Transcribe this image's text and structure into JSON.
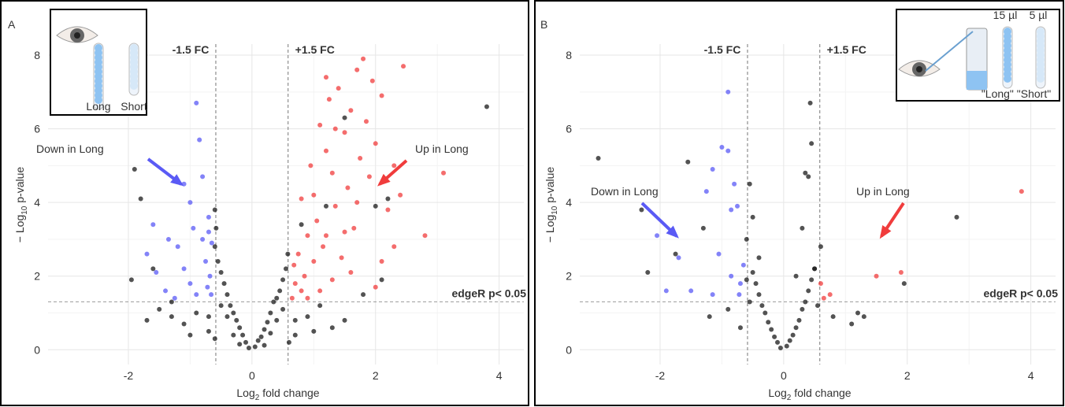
{
  "chart_data": [
    {
      "type": "scatter",
      "panel_label": "A",
      "xlabel": {
        "pre": "Log",
        "sub": "2",
        "post": " fold change"
      },
      "ylabel": {
        "pre": "− Log",
        "sub": "10",
        "post": " p-value"
      },
      "xlim": [
        -3.3,
        4.4
      ],
      "ylim": [
        -0.4,
        8.3
      ],
      "xticks": [
        -2,
        0,
        2,
        4
      ],
      "yticks": [
        0,
        2,
        4,
        6,
        8
      ],
      "grid": true,
      "fc_lines": [
        -0.585,
        0.585
      ],
      "fc_labels": [
        "-1.5 FC",
        "+1.5 FC"
      ],
      "p_line": 1.301,
      "p_label": "edgeR p< 0.05",
      "down_label": "Down in Long",
      "up_label": "Up in Long",
      "inset_labels": [
        "Long",
        "Short"
      ],
      "series": [
        {
          "color": "#1a1a1a",
          "x": [
            -0.05,
            0.05,
            -0.1,
            0.1,
            -0.15,
            0.15,
            -0.2,
            0.2,
            -0.25,
            0.25,
            -0.3,
            0.3,
            -0.35,
            0.35,
            -0.4,
            0.4,
            -0.45,
            0.45,
            -0.5,
            0.5,
            -0.55,
            0.55,
            -0.6,
            -0.58,
            -0.6,
            0.58,
            -0.4,
            0.4,
            -0.5,
            0.5,
            -0.7,
            0.7,
            -0.9,
            0.9,
            -1.1,
            1.1,
            -1.3,
            1.3,
            -1.5,
            -1.7,
            1.5,
            -1.9,
            -1.8,
            -1.95,
            -1.6,
            -1.3,
            -0.7,
            0.7,
            3.8,
            2.2,
            2.0,
            2.1,
            1.8,
            0.6,
            -0.6,
            -0.2,
            0.2,
            -1.0,
            1.0,
            0.8,
            1.5,
            1.2,
            -0.3,
            0.3
          ],
          "values": [
            0.05,
            0.08,
            0.2,
            0.25,
            0.4,
            0.35,
            0.6,
            0.55,
            0.8,
            0.75,
            1.0,
            1.0,
            1.2,
            1.3,
            1.5,
            1.4,
            1.8,
            1.6,
            2.1,
            1.9,
            2.4,
            2.2,
            2.8,
            3.3,
            3.8,
            2.6,
            0.9,
            0.8,
            1.2,
            1.1,
            0.9,
            0.8,
            1.0,
            0.9,
            0.7,
            1.2,
            0.9,
            0.6,
            1.1,
            0.8,
            0.8,
            4.9,
            4.1,
            1.9,
            2.2,
            1.3,
            0.5,
            0.4,
            6.6,
            4.1,
            3.9,
            1.9,
            1.5,
            0.2,
            0.3,
            0.15,
            0.12,
            0.4,
            0.5,
            3.4,
            6.3,
            3.9,
            0.4,
            0.45
          ]
        },
        {
          "color": "#5a5af5",
          "x": [
            -0.9,
            -0.85,
            -0.8,
            -1.1,
            -1.35,
            -1.6,
            -1.7,
            -1.2,
            -0.7,
            -0.65,
            -0.75,
            -0.68,
            -0.72,
            -1.0,
            -1.4,
            -1.1,
            -0.95,
            -0.8,
            -0.66,
            -1.25,
            -0.9,
            -1.55,
            -0.7,
            -1.0
          ],
          "values": [
            6.7,
            5.7,
            4.7,
            4.5,
            3.0,
            3.4,
            2.6,
            2.8,
            3.6,
            2.9,
            2.4,
            2.0,
            1.7,
            1.8,
            1.6,
            2.2,
            3.3,
            3.0,
            1.5,
            1.4,
            1.5,
            2.1,
            3.2,
            4.0
          ]
        },
        {
          "color": "#f03c3c",
          "x": [
            0.65,
            0.7,
            0.68,
            0.8,
            0.75,
            0.9,
            0.85,
            1.0,
            1.05,
            0.95,
            1.1,
            1.2,
            1.15,
            1.3,
            1.25,
            1.35,
            1.4,
            1.5,
            1.45,
            1.55,
            1.6,
            1.7,
            1.65,
            1.75,
            1.8,
            1.85,
            1.9,
            1.95,
            2.0,
            2.1,
            2.2,
            2.3,
            2.45,
            2.4,
            2.3,
            2.1,
            1.3,
            1.1,
            0.9,
            1.2,
            2.8,
            3.1,
            2.0,
            1.0,
            1.6,
            1.35,
            1.5,
            1.2,
            0.8,
            1.7
          ],
          "values": [
            1.4,
            1.8,
            2.3,
            1.6,
            2.6,
            3.1,
            2.0,
            4.2,
            3.5,
            5.0,
            6.1,
            5.4,
            2.8,
            4.8,
            6.8,
            3.9,
            7.1,
            5.9,
            2.5,
            4.4,
            6.5,
            7.6,
            3.3,
            5.2,
            7.9,
            6.2,
            4.7,
            7.3,
            5.6,
            6.9,
            3.8,
            5.0,
            7.7,
            4.2,
            2.8,
            2.4,
            1.9,
            1.6,
            1.4,
            3.1,
            3.1,
            4.8,
            1.7,
            2.4,
            2.1,
            6.0,
            3.2,
            7.4,
            4.1,
            4.0
          ]
        }
      ]
    },
    {
      "type": "scatter",
      "panel_label": "B",
      "xlabel": {
        "pre": "Log",
        "sub": "2",
        "post": " fold change"
      },
      "ylabel": {
        "pre": "− Log",
        "sub": "10",
        "post": " p-value"
      },
      "xlim": [
        -3.3,
        4.4
      ],
      "ylim": [
        -0.4,
        8.3
      ],
      "xticks": [
        -2,
        0,
        2,
        4
      ],
      "yticks": [
        0,
        2,
        4,
        6,
        8
      ],
      "grid": true,
      "fc_lines": [
        -0.585,
        0.585
      ],
      "fc_labels": [
        "-1.5 FC",
        "+1.5 FC"
      ],
      "p_line": 1.301,
      "p_label": "edgeR p< 0.05",
      "down_label": "Down in Long",
      "up_label": "Up in Long",
      "inset_labels": [
        "15 µl",
        "5 µl",
        "\"Long\" \"Short\""
      ],
      "series": [
        {
          "color": "#1a1a1a",
          "x": [
            -0.05,
            0.05,
            -0.1,
            0.1,
            -0.15,
            0.15,
            -0.2,
            0.2,
            -0.25,
            0.25,
            -0.3,
            0.3,
            -0.35,
            0.35,
            -0.4,
            0.4,
            -0.45,
            0.45,
            -0.5,
            0.5,
            -3.0,
            -1.55,
            -1.3,
            -1.75,
            -2.3,
            -2.2,
            2.8,
            1.95,
            0.4,
            0.43,
            0.45,
            0.35,
            0.3,
            -0.55,
            -0.5,
            1.2,
            1.3,
            1.1,
            -0.9,
            -1.2,
            -0.4,
            0.5,
            -0.6,
            0.6,
            -0.55,
            0.55,
            -0.7,
            0.8,
            -0.6,
            0.2
          ],
          "values": [
            0.05,
            0.1,
            0.2,
            0.25,
            0.35,
            0.4,
            0.55,
            0.6,
            0.75,
            0.8,
            1.0,
            1.1,
            1.2,
            1.3,
            1.5,
            1.6,
            1.8,
            1.9,
            2.1,
            2.2,
            5.2,
            5.1,
            3.3,
            2.6,
            3.8,
            2.1,
            3.6,
            1.8,
            4.7,
            6.7,
            5.6,
            4.8,
            3.3,
            4.5,
            3.6,
            1.0,
            0.9,
            0.7,
            1.1,
            0.9,
            2.5,
            2.2,
            3.0,
            2.8,
            1.3,
            1.2,
            0.6,
            0.9,
            1.9,
            2.0
          ]
        },
        {
          "color": "#5a5af5",
          "x": [
            -0.9,
            -1.0,
            -0.9,
            -1.15,
            -1.25,
            -0.8,
            -0.75,
            -0.85,
            -1.7,
            -2.05,
            -1.9,
            -1.05,
            -0.7,
            -0.65,
            -0.72,
            -1.15,
            -1.5,
            -0.85
          ],
          "values": [
            7.0,
            5.5,
            5.4,
            4.9,
            4.3,
            4.5,
            3.9,
            3.8,
            2.5,
            3.1,
            1.6,
            2.6,
            1.8,
            2.3,
            1.5,
            1.5,
            1.6,
            2.0
          ]
        },
        {
          "color": "#f03c3c",
          "x": [
            3.85,
            1.5,
            1.9,
            0.6,
            0.65,
            0.75
          ],
          "values": [
            4.3,
            2.0,
            2.1,
            1.8,
            1.4,
            1.5
          ]
        }
      ]
    }
  ]
}
